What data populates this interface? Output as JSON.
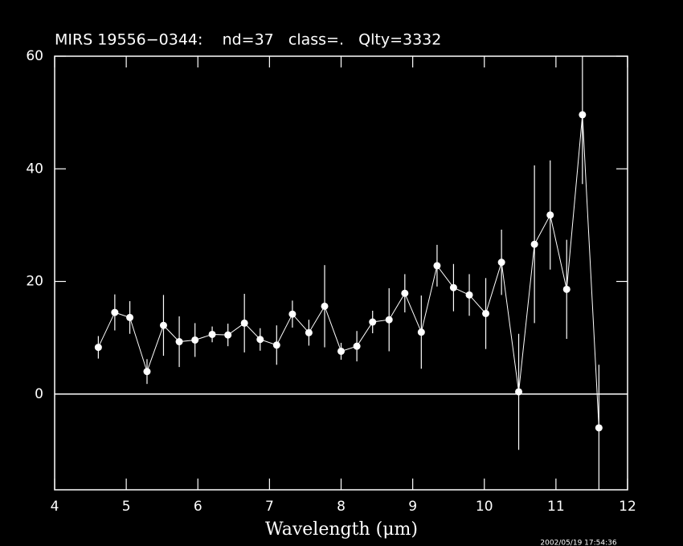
{
  "chart_data": {
    "type": "errorbar",
    "title": "MIRS 19556−0344:    nd=37   class=.   Qlty=3332",
    "x_label": "Wavelength (μm)",
    "timestamp": "2002/05/19 17:54:36",
    "xlim": [
      4,
      12
    ],
    "ylim": [
      -17,
      60
    ],
    "xticks": [
      4,
      5,
      6,
      7,
      8,
      9,
      10,
      11,
      12
    ],
    "yticks": [
      0,
      20,
      40,
      60
    ],
    "zero_line": true,
    "color": "#ffffff",
    "series": [
      {
        "x": [
          4.61,
          4.84,
          5.05,
          5.29,
          5.52,
          5.74,
          5.96,
          6.2,
          6.42,
          6.65,
          6.87,
          7.1,
          7.32,
          7.55,
          7.77,
          8.0,
          8.22,
          8.44,
          8.67,
          8.89,
          9.12,
          9.34,
          9.57,
          9.79,
          10.02,
          10.24,
          10.48,
          10.7,
          10.92,
          11.15,
          11.37,
          11.6
        ],
        "values": [
          8.3,
          14.5,
          13.6,
          4.0,
          12.2,
          9.3,
          9.6,
          10.6,
          10.5,
          12.6,
          9.7,
          8.7,
          14.2,
          10.9,
          15.6,
          7.6,
          8.5,
          12.8,
          13.2,
          17.9,
          11.0,
          22.8,
          18.9,
          17.6,
          14.3,
          23.4,
          0.4,
          26.6,
          31.8,
          18.6,
          49.6,
          -6.0
        ],
        "errors": [
          2.0,
          3.2,
          2.9,
          2.2,
          5.4,
          4.5,
          3.0,
          1.4,
          2.0,
          5.2,
          2.0,
          3.5,
          2.4,
          2.3,
          7.3,
          1.5,
          2.7,
          2.0,
          5.6,
          3.4,
          6.5,
          3.7,
          4.2,
          3.7,
          6.3,
          5.8,
          10.3,
          14.0,
          9.7,
          8.8,
          12.3,
          11.2
        ]
      }
    ]
  }
}
